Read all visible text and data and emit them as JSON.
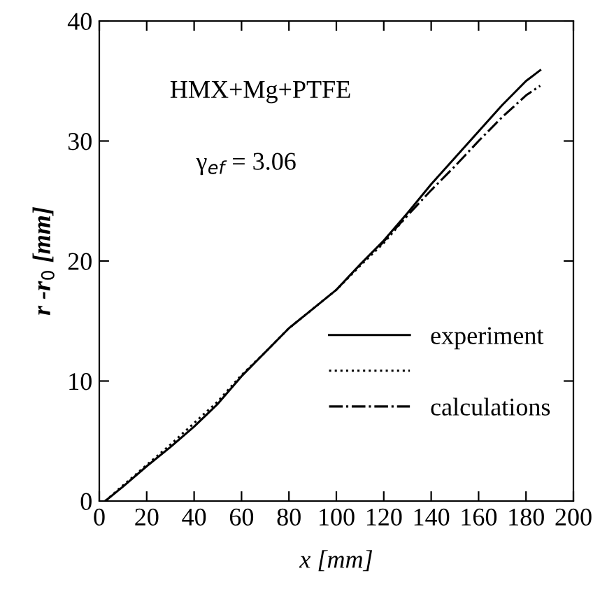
{
  "chart_data": {
    "type": "line",
    "xlabel": "x [mm]",
    "ylabel": "r -r$_{0}$ [mm]",
    "annotations": [
      "HMX+Mg+PTFE",
      "γ$_{ef}$ = 3.06"
    ],
    "series": [
      {
        "name": "experiment",
        "color": "#000000",
        "line_style": "solid",
        "x": [
          2.5,
          10,
          20,
          30,
          40,
          50,
          60,
          70,
          80,
          90,
          100,
          110,
          120,
          130,
          140,
          150,
          160,
          170,
          180,
          186
        ],
        "values": [
          0,
          1.2,
          2.9,
          4.5,
          6.2,
          8.1,
          10.4,
          12.4,
          14.4,
          16.0,
          17.6,
          19.7,
          21.7,
          24.0,
          26.4,
          28.6,
          30.8,
          33.0,
          35.0,
          35.9
        ]
      },
      {
        "color": "#000000",
        "line_style": "dotted",
        "x": [
          2.5,
          10,
          20,
          30,
          40,
          50,
          60,
          70,
          80,
          90,
          100,
          110,
          120,
          130
        ],
        "values": [
          0,
          1.3,
          3.0,
          4.7,
          6.5,
          8.3,
          10.5,
          12.4,
          14.4,
          16.0,
          17.6,
          19.6,
          21.5,
          23.8
        ]
      },
      {
        "name": "calculations",
        "color": "#000000",
        "line_style": "dashdot",
        "x": [
          118,
          130,
          140,
          150,
          160,
          170,
          180,
          186
        ],
        "values": [
          21.2,
          23.8,
          25.9,
          27.9,
          30.0,
          32.0,
          33.8,
          34.6
        ]
      }
    ],
    "xlim": [
      0,
      200
    ],
    "xticks": [
      0,
      20,
      40,
      60,
      80,
      100,
      120,
      140,
      160,
      180,
      200
    ],
    "ylim": [
      0,
      40
    ],
    "yticks": [
      0,
      10,
      20,
      30,
      40
    ],
    "grid": false,
    "legend": "bottom right",
    "marker": "none"
  }
}
